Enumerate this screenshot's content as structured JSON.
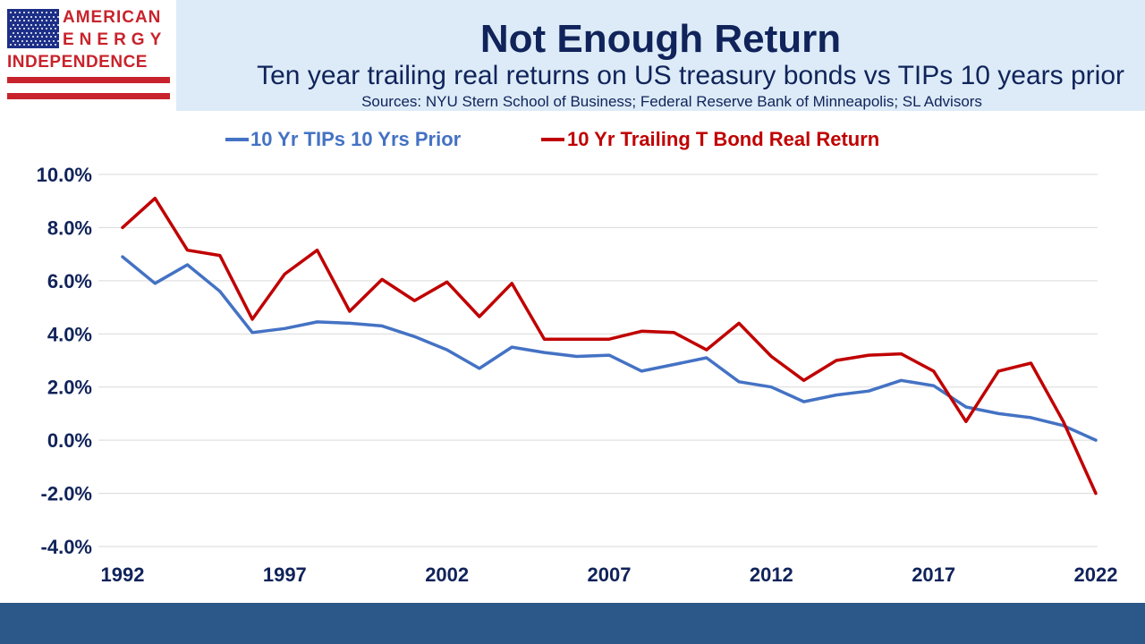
{
  "logo": {
    "line1": "AMERICAN",
    "line2": "ENERGY",
    "line3": "INDEPENDENCE",
    "flag_color": "#1c2f87",
    "text_color": "#c8232c"
  },
  "header": {
    "title": "Not Enough Return",
    "subtitle": "Ten year trailing real returns on US treasury bonds vs TIPs 10 years prior",
    "sources": "Sources: NYU Stern School of Business; Federal Reserve Bank of Minneapolis; SL Advisors",
    "background_color": "#dcebf7",
    "text_color": "#10235a"
  },
  "footer": {
    "color": "#2b5888"
  },
  "chart_data": {
    "type": "line",
    "x": [
      1992,
      1993,
      1994,
      1995,
      1996,
      1997,
      1998,
      1999,
      2000,
      2001,
      2002,
      2003,
      2004,
      2005,
      2006,
      2007,
      2008,
      2009,
      2010,
      2011,
      2012,
      2013,
      2014,
      2015,
      2016,
      2017,
      2018,
      2019,
      2020,
      2021,
      2022
    ],
    "x_ticks": [
      1992,
      1997,
      2002,
      2007,
      2012,
      2017,
      2022
    ],
    "y_ticks": [
      "10.0%",
      "8.0%",
      "6.0%",
      "4.0%",
      "2.0%",
      "0.0%",
      "-2.0%",
      "-4.0%"
    ],
    "ylim": [
      -4,
      10
    ],
    "grid": true,
    "legend_position": "top",
    "series": [
      {
        "name": "10 Yr TIPs 10 Yrs Prior",
        "color": "#4472c4",
        "values": [
          6.9,
          5.9,
          6.6,
          5.6,
          4.05,
          4.2,
          4.45,
          4.4,
          4.3,
          3.9,
          3.4,
          2.7,
          3.5,
          3.3,
          3.15,
          3.2,
          2.6,
          2.85,
          3.1,
          2.2,
          2.0,
          1.45,
          1.7,
          1.85,
          2.25,
          2.05,
          1.25,
          1.0,
          0.85,
          0.55,
          0.0
        ]
      },
      {
        "name": "10 Yr Trailing T Bond Real Return",
        "color": "#c00000",
        "values": [
          8.0,
          9.1,
          7.15,
          6.95,
          4.55,
          6.25,
          7.15,
          4.85,
          6.05,
          5.25,
          5.95,
          4.65,
          5.9,
          3.8,
          3.8,
          3.8,
          4.1,
          4.05,
          3.4,
          4.4,
          3.15,
          2.25,
          3.0,
          3.2,
          3.25,
          2.6,
          0.7,
          2.6,
          2.9,
          0.7,
          -2.0
        ]
      }
    ]
  }
}
